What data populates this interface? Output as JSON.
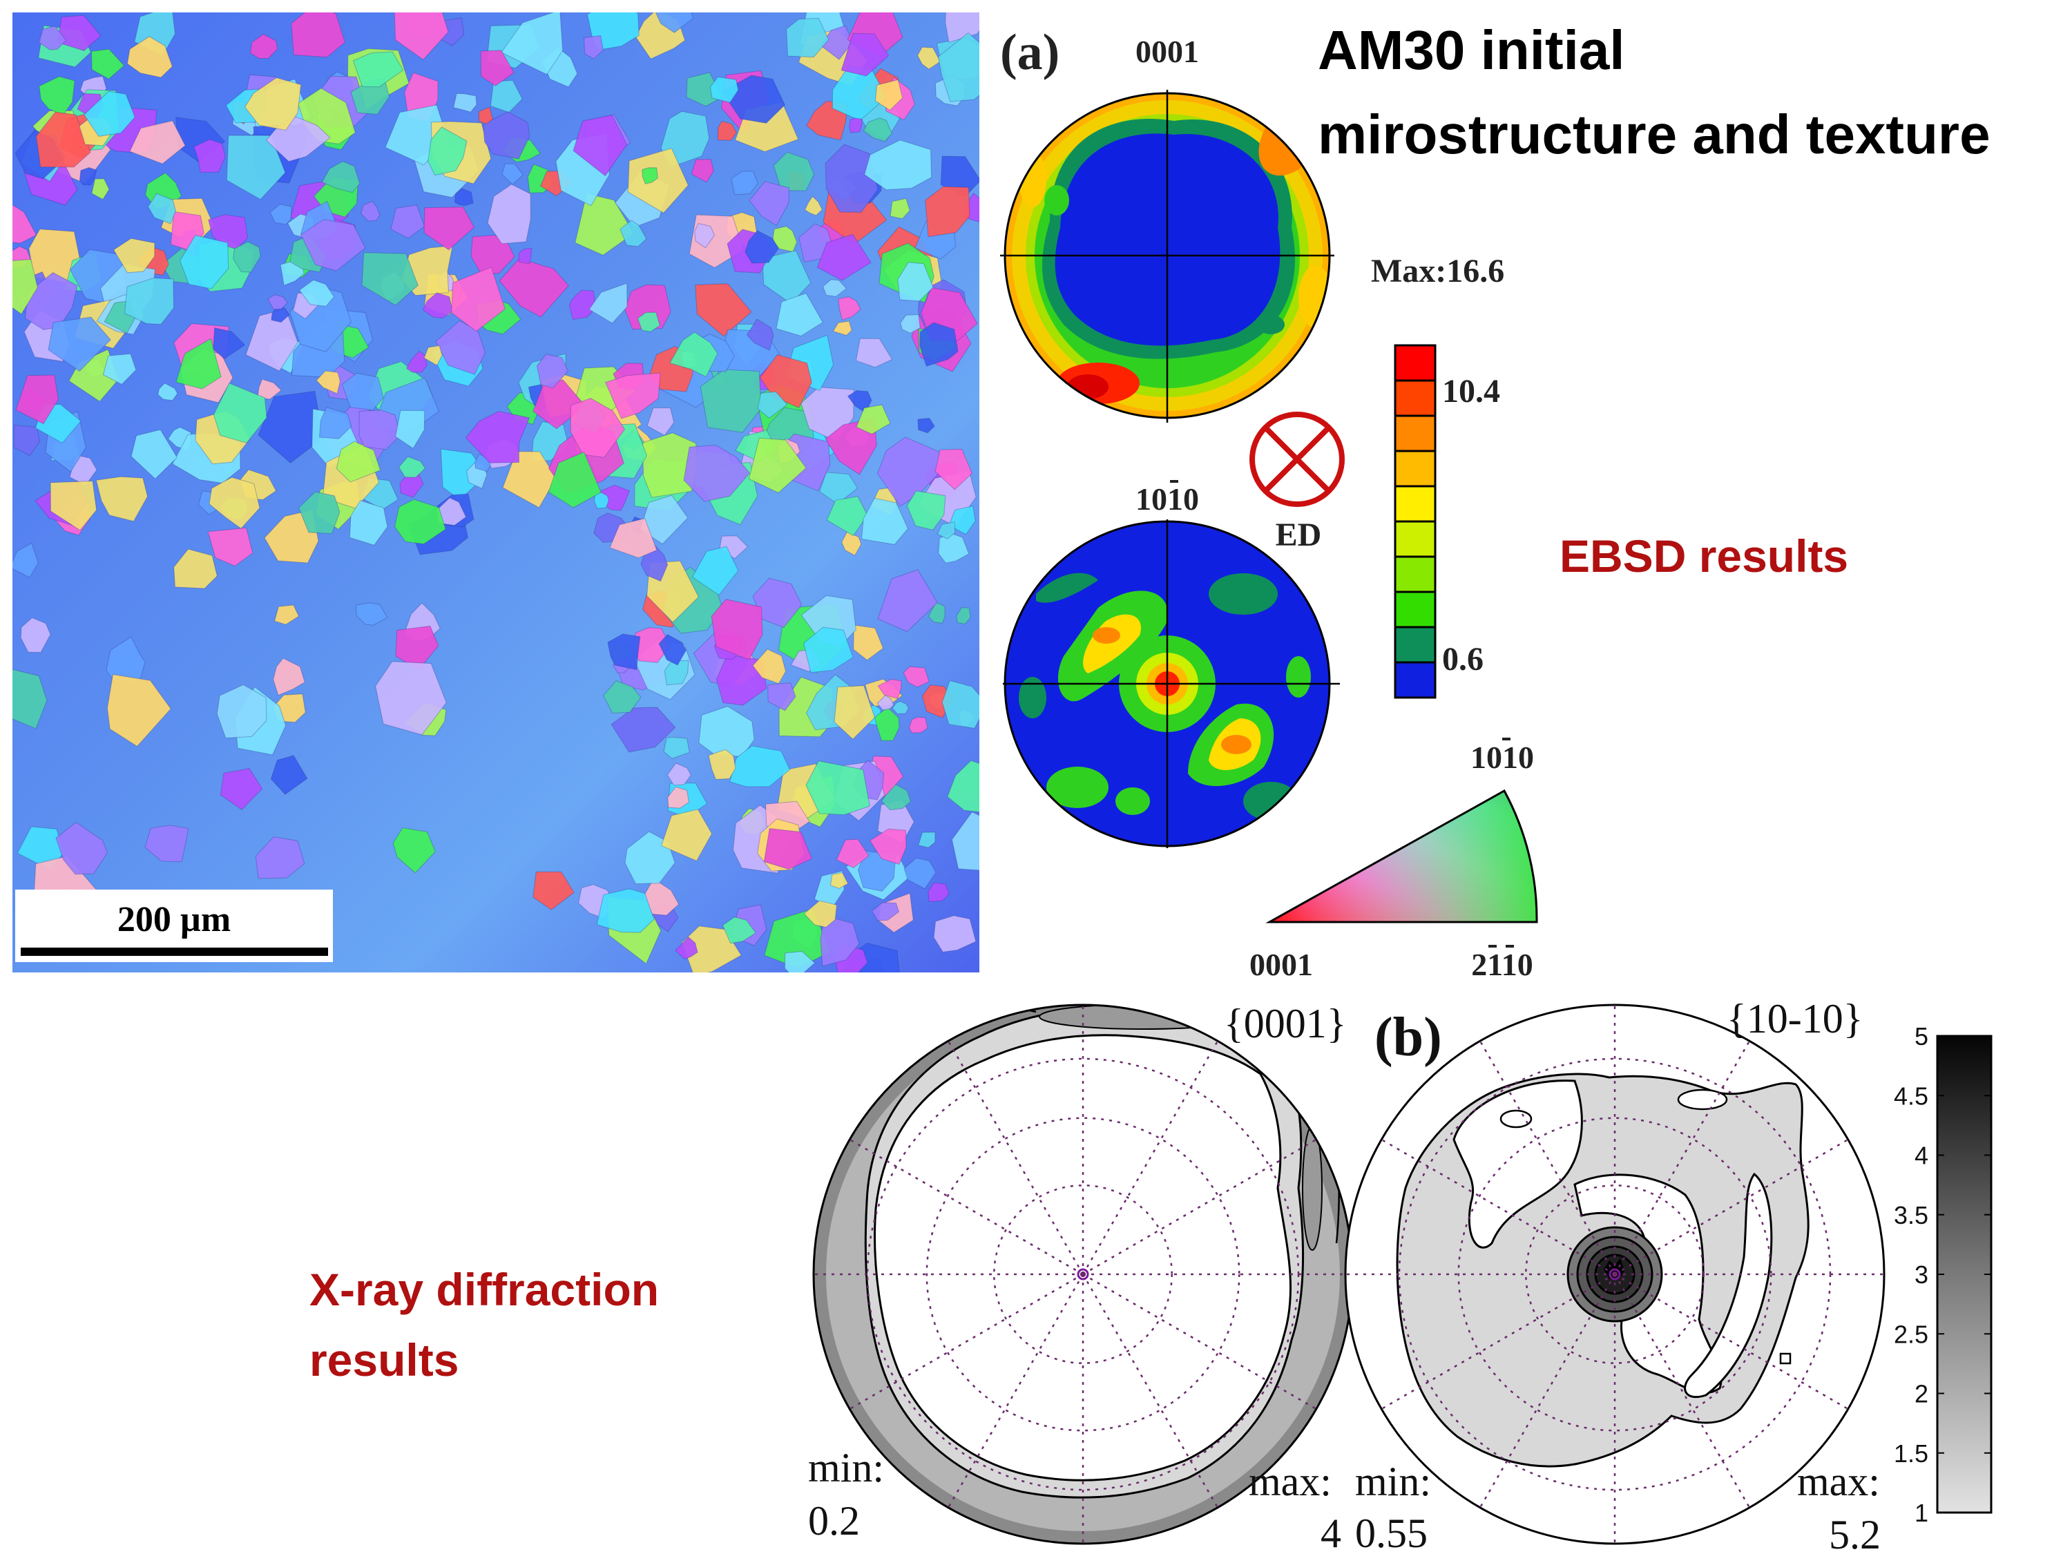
{
  "title": {
    "line1": "AM30 initial",
    "line2": "mirostructure and texture"
  },
  "section_labels": {
    "ebsd": "EBSD results",
    "xray": "X-ray diffraction results"
  },
  "ebsd": {
    "panel_label": "(a)",
    "scale_bar": "200  µm",
    "pole_figure_top_label": "0001",
    "pole_figure_bottom_label": "1010",
    "max_label": "Max:16.6",
    "colorbar_ticks": [
      "10.4",
      "0.6"
    ],
    "colorbar_colors": [
      "#ff0000",
      "#ff4400",
      "#ff8800",
      "#ffbb00",
      "#ffee00",
      "#ccf000",
      "#88e800",
      "#33dd00",
      "#0e8f5a",
      "#1020e0"
    ],
    "direction_label": "ED",
    "ipf_labels": {
      "top": "1010",
      "left": "0001",
      "right": "2110"
    }
  },
  "xray": {
    "panel_label": "(b)",
    "pf1_title": "{0001}",
    "pf2_title": "{10-10}",
    "pf1_min_label": "min:",
    "pf1_min_value": "0.2",
    "pf1_max_label": "max:",
    "pf1_max_value": "4",
    "pf2_min_label": "min:",
    "pf2_min_value": "0.55",
    "pf2_max_label": "max:",
    "pf2_max_value": "5.2",
    "colorbar_ticks": [
      "5",
      "4.5",
      "4",
      "3.5",
      "3",
      "2.5",
      "2",
      "1.5",
      "1"
    ]
  }
}
